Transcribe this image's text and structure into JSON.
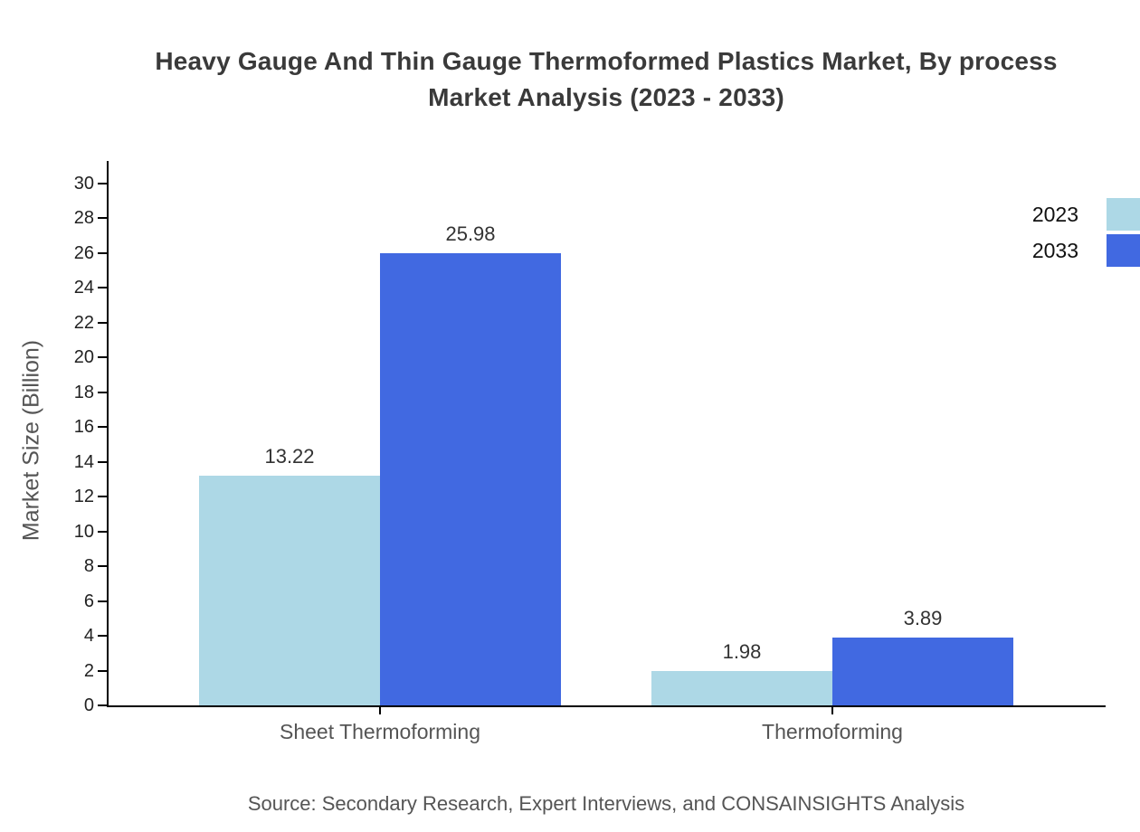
{
  "title": {
    "full": "Heavy Gauge And Thin Gauge Thermoformed Plastics Market, By process Market Analysis (2023 - 2033)",
    "lines": [
      "Heavy Gauge And Thin Gauge Thermoformed Plastics Market, By process",
      "Market Analysis (2023 - 2033)"
    ]
  },
  "chart_data": {
    "type": "bar",
    "title": "Heavy Gauge And Thin Gauge Thermoformed Plastics Market, By process Market Analysis (2023 - 2033)",
    "categories": [
      "Sheet Thermoforming",
      "Thermoforming"
    ],
    "series": [
      {
        "name": "2023",
        "color": "#ADD8E6",
        "values": [
          13.22,
          1.98
        ]
      },
      {
        "name": "2033",
        "color": "#4169E1",
        "values": [
          25.98,
          3.89
        ]
      }
    ],
    "value_labels": [
      [
        "13.22",
        "1.98"
      ],
      [
        "25.98",
        "3.89"
      ]
    ],
    "xlabel": "",
    "ylabel": "Market Size (Billion)",
    "ylim": [
      0,
      30
    ],
    "ytick_step": 2,
    "yticks": [
      0,
      2,
      4,
      6,
      8,
      10,
      12,
      14,
      16,
      18,
      20,
      22,
      24,
      26,
      28,
      30
    ],
    "grid": false,
    "legend_position": "right-edge-outside-top"
  },
  "footer": {
    "source": "Source: Secondary Research, Expert Interviews, and CONSAINSIGHTS Analysis"
  },
  "colors": {
    "background": "#ffffff",
    "axis": "#000000",
    "title_text": "#3a3a3a",
    "tick_text": "#222222",
    "value_text": "#333333",
    "category_text": "#555555",
    "source_text": "#555555",
    "series_2023": "#ADD8E6",
    "series_2033": "#4169E1"
  }
}
